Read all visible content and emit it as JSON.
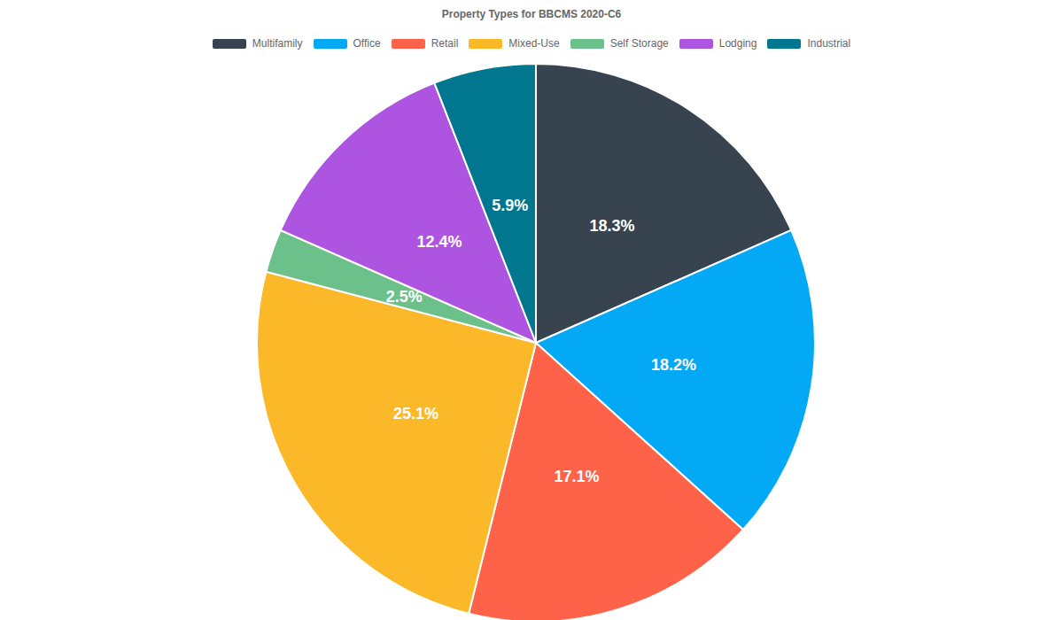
{
  "chart_data": {
    "type": "pie",
    "title": "Property Types for BBCMS 2020-C6",
    "categories": [
      "Multifamily",
      "Office",
      "Retail",
      "Mixed-Use",
      "Self Storage",
      "Lodging",
      "Industrial"
    ],
    "values": [
      18.3,
      18.2,
      17.1,
      25.1,
      2.5,
      12.4,
      5.9
    ],
    "value_labels": [
      "18.3%",
      "18.2%",
      "17.1%",
      "25.1%",
      "2.5%",
      "12.4%",
      "5.9%"
    ],
    "colors": [
      "#37444f",
      "#03a9f4",
      "#fe6249",
      "#fbb829",
      "#6cc18b",
      "#ad55e0",
      "#00778f"
    ],
    "data_labels": true,
    "legend": "top"
  }
}
